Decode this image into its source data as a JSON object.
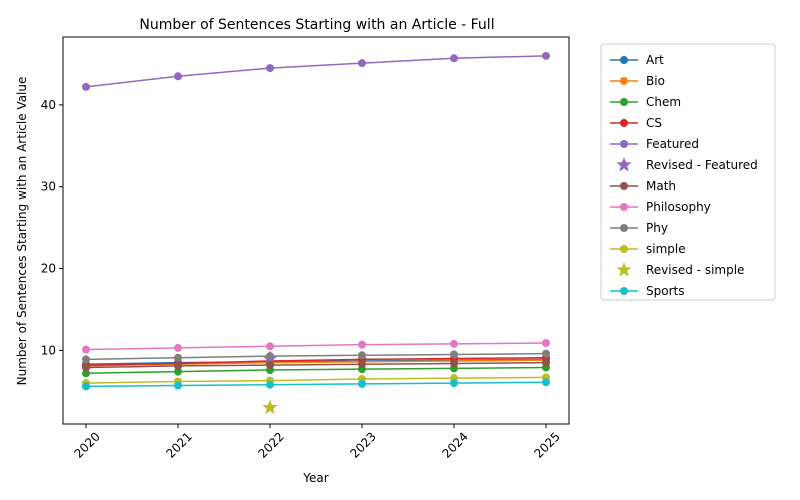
{
  "chart_data": {
    "type": "line",
    "title": "Number of Sentences Starting with an Article - Full",
    "xlabel": "Year",
    "ylabel": "Number of Sentences Starting with an Article Value",
    "x": [
      2020,
      2021,
      2022,
      2023,
      2024,
      2025
    ],
    "x_tick_labels": [
      "2020",
      "2021",
      "2022",
      "2023",
      "2024",
      "2025"
    ],
    "xlim": [
      2019.75,
      2025.25
    ],
    "ylim": [
      1.0,
      48.3
    ],
    "y_ticks": [
      10,
      20,
      30,
      40
    ],
    "y_tick_labels": [
      "10",
      "20",
      "30",
      "40"
    ],
    "grid": false,
    "legend_position": "outside-right",
    "series": [
      {
        "name": "Art",
        "color": "#1f77b4",
        "marker": "circle",
        "values": [
          8.3,
          8.5,
          8.6,
          8.7,
          8.8,
          8.9
        ]
      },
      {
        "name": "Bio",
        "color": "#ff7f0e",
        "marker": "circle",
        "values": [
          8.1,
          8.3,
          8.5,
          8.6,
          8.7,
          8.8
        ]
      },
      {
        "name": "Chem",
        "color": "#2ca02c",
        "marker": "circle",
        "values": [
          7.2,
          7.4,
          7.6,
          7.7,
          7.8,
          7.9
        ]
      },
      {
        "name": "CS",
        "color": "#d62728",
        "marker": "circle",
        "values": [
          8.2,
          8.4,
          8.7,
          8.9,
          9.0,
          9.1
        ]
      },
      {
        "name": "Featured",
        "color": "#9467bd",
        "marker": "circle",
        "values": [
          42.2,
          43.5,
          44.5,
          45.1,
          45.7,
          46.0
        ]
      },
      {
        "name": "Revised - Featured",
        "color": "#9467bd",
        "marker": "star",
        "points": [
          [
            2022,
            9.0
          ]
        ]
      },
      {
        "name": "Math",
        "color": "#8c564b",
        "marker": "circle",
        "values": [
          7.9,
          8.1,
          8.2,
          8.3,
          8.4,
          8.5
        ]
      },
      {
        "name": "Philosophy",
        "color": "#e377c2",
        "marker": "circle",
        "values": [
          10.1,
          10.3,
          10.5,
          10.7,
          10.8,
          10.9
        ]
      },
      {
        "name": "Phy",
        "color": "#7f7f7f",
        "marker": "circle",
        "values": [
          8.9,
          9.1,
          9.3,
          9.4,
          9.5,
          9.6
        ]
      },
      {
        "name": "simple",
        "color": "#bcbd22",
        "marker": "circle",
        "values": [
          6.0,
          6.2,
          6.3,
          6.5,
          6.6,
          6.7
        ]
      },
      {
        "name": "Revised - simple",
        "color": "#bcbd22",
        "marker": "star",
        "points": [
          [
            2022,
            3.0
          ]
        ]
      },
      {
        "name": "Sports",
        "color": "#17becf",
        "marker": "circle",
        "values": [
          5.6,
          5.7,
          5.8,
          5.9,
          6.0,
          6.1
        ]
      }
    ]
  }
}
